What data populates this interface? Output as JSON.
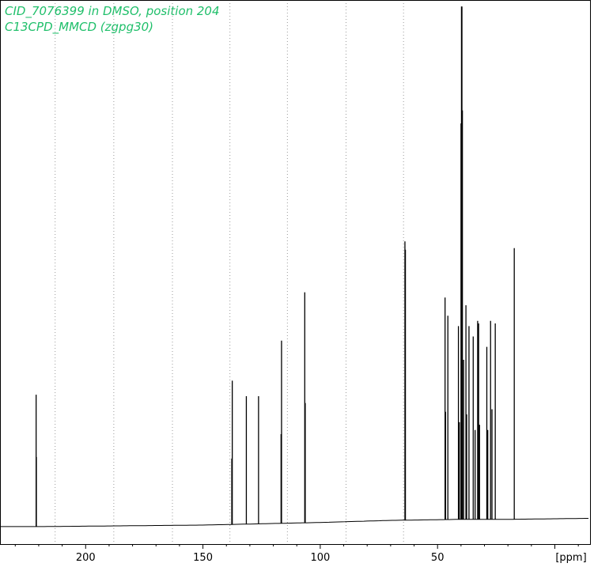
{
  "chart_data": {
    "type": "line",
    "title_lines": [
      "CID_7076399 in DMSO, position 204",
      "C13CPD_MMCD (zgpg30)"
    ],
    "xlabel": "[ppm]",
    "x_reversed": true,
    "xlim": [
      236.5,
      -15
    ],
    "ylim": [
      0,
      1
    ],
    "x_ticks": [
      200,
      150,
      100,
      50
    ],
    "x_tick_labels": [
      "200",
      "150",
      "100",
      "50"
    ],
    "grid_x": [
      213,
      188,
      163,
      138.5,
      114,
      89,
      64.5
    ],
    "baseline": [
      [
        236.5,
        -0.006
      ],
      [
        220,
        -0.006
      ],
      [
        150,
        -0.003
      ],
      [
        100,
        0.002
      ],
      [
        70,
        0.006
      ],
      [
        40,
        0.008
      ],
      [
        20,
        0.008
      ],
      [
        -15,
        0.01
      ]
    ],
    "peaks": [
      {
        "ppm": 221.1,
        "height": 0.248
      },
      {
        "ppm": 221.0,
        "height": 0.128
      },
      {
        "ppm": 137.7,
        "height": 0.125
      },
      {
        "ppm": 137.5,
        "height": 0.275
      },
      {
        "ppm": 131.5,
        "height": 0.245
      },
      {
        "ppm": 126.3,
        "height": 0.245
      },
      {
        "ppm": 116.7,
        "height": 0.172
      },
      {
        "ppm": 116.5,
        "height": 0.352
      },
      {
        "ppm": 106.6,
        "height": 0.445
      },
      {
        "ppm": 106.4,
        "height": 0.232
      },
      {
        "ppm": 63.9,
        "height": 0.543
      },
      {
        "ppm": 63.7,
        "height": 0.527
      },
      {
        "ppm": 46.8,
        "height": 0.435
      },
      {
        "ppm": 46.6,
        "height": 0.215
      },
      {
        "ppm": 45.6,
        "height": 0.4
      },
      {
        "ppm": 41.1,
        "height": 0.38
      },
      {
        "ppm": 40.7,
        "height": 0.195
      },
      {
        "ppm": 40.0,
        "height": 0.77
      },
      {
        "ppm": 39.8,
        "height": 0.995
      },
      {
        "ppm": 39.6,
        "height": 0.995
      },
      {
        "ppm": 39.4,
        "height": 0.795
      },
      {
        "ppm": 38.9,
        "height": 0.315
      },
      {
        "ppm": 37.9,
        "height": 0.42
      },
      {
        "ppm": 37.6,
        "height": 0.21
      },
      {
        "ppm": 36.6,
        "height": 0.38
      },
      {
        "ppm": 34.8,
        "height": 0.36
      },
      {
        "ppm": 34.0,
        "height": 0.18
      },
      {
        "ppm": 32.9,
        "height": 0.39
      },
      {
        "ppm": 32.5,
        "height": 0.385
      },
      {
        "ppm": 32.1,
        "height": 0.19
      },
      {
        "ppm": 29.0,
        "height": 0.34
      },
      {
        "ppm": 28.6,
        "height": 0.18
      },
      {
        "ppm": 27.4,
        "height": 0.39
      },
      {
        "ppm": 26.8,
        "height": 0.22
      },
      {
        "ppm": 25.4,
        "height": 0.385
      },
      {
        "ppm": 17.3,
        "height": 0.53
      }
    ]
  }
}
